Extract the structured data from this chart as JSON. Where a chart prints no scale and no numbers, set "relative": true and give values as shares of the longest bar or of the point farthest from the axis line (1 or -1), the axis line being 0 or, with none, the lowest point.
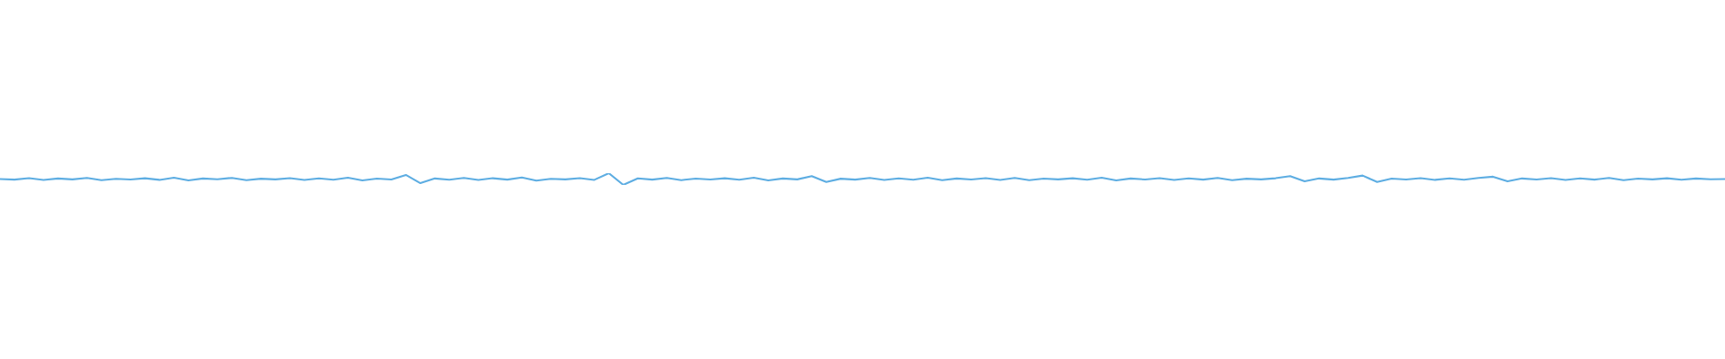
{
  "chart_data": {
    "type": "line",
    "relative": true,
    "categories": [
      null,
      null,
      null,
      null,
      null,
      null,
      null,
      null,
      null,
      null,
      null,
      null,
      null,
      null,
      null,
      null,
      null,
      null,
      null,
      null,
      null,
      null,
      null,
      null,
      null,
      null,
      null,
      null,
      null,
      null,
      null,
      null,
      null,
      null,
      null,
      null,
      null,
      null,
      null,
      null,
      null,
      null,
      null,
      null,
      null,
      null,
      null,
      null,
      null,
      null,
      null,
      null,
      null,
      null,
      null,
      null,
      null,
      null,
      null,
      null,
      null,
      null,
      null,
      null,
      null,
      null,
      null,
      null,
      null,
      null,
      null,
      null,
      null,
      null,
      null,
      null,
      null,
      null,
      null,
      null,
      null,
      null,
      null,
      null,
      null,
      null,
      null,
      null,
      null,
      null,
      null,
      null,
      null,
      null,
      null,
      null,
      null,
      null,
      null,
      null,
      null,
      null,
      null,
      null,
      null,
      null,
      null,
      null,
      null,
      null,
      null,
      null,
      null,
      null,
      null,
      null,
      null,
      null,
      null,
      null
    ],
    "series": [
      {
        "color": "#5dade2",
        "values": [
          0.5,
          0.45,
          0.58,
          0.42,
          0.55,
          0.47,
          0.6,
          0.4,
          0.52,
          0.46,
          0.57,
          0.43,
          0.62,
          0.38,
          0.55,
          0.48,
          0.6,
          0.41,
          0.53,
          0.47,
          0.58,
          0.42,
          0.56,
          0.44,
          0.61,
          0.39,
          0.54,
          0.46,
          0.85,
          0.15,
          0.55,
          0.44,
          0.6,
          0.42,
          0.57,
          0.45,
          0.63,
          0.37,
          0.52,
          0.47,
          0.58,
          0.43,
          1.0,
          0.0,
          0.56,
          0.45,
          0.6,
          0.41,
          0.54,
          0.46,
          0.57,
          0.44,
          0.62,
          0.39,
          0.55,
          0.47,
          0.75,
          0.25,
          0.53,
          0.45,
          0.59,
          0.42,
          0.56,
          0.44,
          0.61,
          0.4,
          0.55,
          0.46,
          0.58,
          0.43,
          0.6,
          0.41,
          0.54,
          0.47,
          0.57,
          0.44,
          0.62,
          0.38,
          0.55,
          0.46,
          0.58,
          0.42,
          0.56,
          0.45,
          0.6,
          0.41,
          0.53,
          0.47,
          0.57,
          0.75,
          0.3,
          0.55,
          0.45,
          0.6,
          0.8,
          0.25,
          0.54,
          0.46,
          0.58,
          0.43,
          0.56,
          0.44,
          0.6,
          0.7,
          0.3,
          0.55,
          0.46,
          0.58,
          0.42,
          0.56,
          0.45,
          0.6,
          0.41,
          0.54,
          0.47,
          0.57,
          0.44,
          0.55,
          0.48,
          0.5
        ]
      }
    ]
  }
}
